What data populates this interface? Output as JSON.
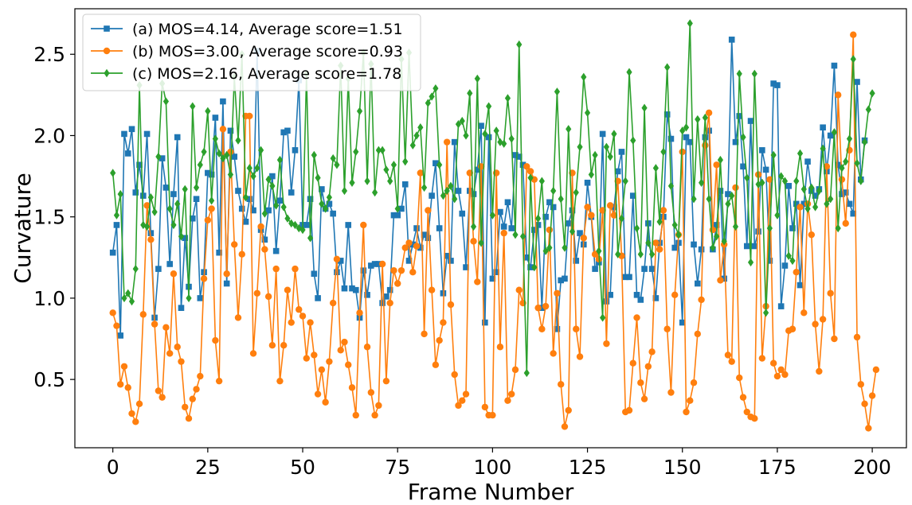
{
  "chart_data": {
    "type": "line",
    "xlabel": "Frame Number",
    "ylabel": "Curvature",
    "xlim": [
      -10,
      209
    ],
    "ylim": [
      0.08,
      2.78
    ],
    "xticks": [
      0,
      25,
      50,
      75,
      100,
      125,
      150,
      175,
      200
    ],
    "yticks": [
      0.5,
      1.0,
      1.5,
      2.0,
      2.5
    ],
    "ytick_labels": [
      "0.5",
      "1.0",
      "1.5",
      "2.0",
      "2.5"
    ],
    "grid": false,
    "legend_position": "upper-left",
    "x_start": 0,
    "x_step": 1,
    "series": [
      {
        "name": "(a) MOS=4.14, Average score=1.51",
        "color": "#1f77b4",
        "marker": "square",
        "values": [
          1.28,
          1.45,
          0.77,
          2.01,
          1.89,
          2.04,
          1.65,
          1.82,
          1.63,
          2.01,
          1.4,
          0.88,
          1.18,
          1.86,
          1.68,
          1.21,
          1.64,
          1.99,
          0.94,
          1.37,
          1.07,
          1.49,
          1.61,
          1.0,
          1.16,
          1.77,
          1.76,
          2.11,
          1.28,
          2.21,
          1.09,
          2.03,
          1.87,
          1.66,
          1.55,
          1.47,
          1.61,
          1.54,
          2.52,
          1.42,
          1.36,
          1.54,
          1.75,
          1.29,
          1.6,
          2.02,
          2.03,
          1.65,
          1.91,
          2.34,
          1.45,
          1.45,
          1.61,
          1.15,
          1.0,
          1.67,
          1.55,
          1.58,
          1.52,
          1.16,
          1.23,
          1.06,
          1.45,
          1.06,
          1.05,
          0.88,
          1.17,
          1.02,
          1.2,
          1.21,
          1.21,
          0.97,
          1.01,
          1.05,
          1.51,
          1.51,
          1.55,
          1.7,
          1.23,
          1.33,
          1.43,
          1.31,
          1.39,
          1.37,
          1.63,
          1.83,
          1.43,
          1.03,
          1.26,
          1.23,
          1.96,
          1.66,
          1.52,
          1.19,
          1.66,
          1.64,
          1.79,
          2.06,
          0.85,
          1.99,
          1.12,
          1.16,
          1.53,
          1.44,
          1.59,
          1.43,
          1.88,
          1.87,
          1.82,
          1.25,
          1.19,
          1.42,
          1.45,
          0.94,
          1.5,
          1.59,
          1.56,
          0.81,
          1.11,
          1.12,
          1.46,
          1.54,
          1.23,
          1.4,
          1.33,
          1.71,
          1.5,
          1.18,
          1.22,
          2.01,
          0.98,
          1.02,
          1.56,
          1.78,
          1.9,
          1.13,
          1.13,
          1.63,
          1.02,
          0.99,
          1.18,
          1.46,
          1.18,
          1.0,
          1.34,
          1.5,
          2.13,
          1.98,
          1.31,
          1.34,
          0.85,
          1.99,
          1.96,
          1.33,
          1.09,
          1.3,
          1.99,
          2.03,
          1.3,
          1.45,
          1.66,
          1.12,
          1.64,
          2.59,
          1.96,
          2.12,
          1.81,
          1.32,
          2.09,
          1.32,
          1.41,
          1.91,
          1.79,
          1.23,
          2.32,
          2.31,
          0.95,
          1.2,
          1.69,
          1.43,
          1.58,
          1.08,
          1.58,
          1.84,
          1.66,
          1.63,
          1.67,
          2.05,
          1.78,
          2.0,
          2.43,
          1.82,
          1.64,
          1.65,
          1.58,
          1.52,
          2.33,
          1.73,
          1.97
        ]
      },
      {
        "name": "(b) MOS=3.00, Average score=0.93",
        "color": "#ff7f0e",
        "marker": "circle",
        "values": [
          0.91,
          0.83,
          0.47,
          0.58,
          0.45,
          0.29,
          0.24,
          0.35,
          0.9,
          1.57,
          1.36,
          0.84,
          0.43,
          0.39,
          0.82,
          0.66,
          1.15,
          0.7,
          0.61,
          0.33,
          0.26,
          0.38,
          0.44,
          0.52,
          1.12,
          1.48,
          1.55,
          0.74,
          0.49,
          2.04,
          1.15,
          1.9,
          1.33,
          0.88,
          1.27,
          2.12,
          2.12,
          0.66,
          1.03,
          1.44,
          1.3,
          1.01,
          0.71,
          1.18,
          0.49,
          0.71,
          1.05,
          0.85,
          1.18,
          0.93,
          0.89,
          0.63,
          0.85,
          0.65,
          0.41,
          0.56,
          0.36,
          0.61,
          0.97,
          1.24,
          0.68,
          0.73,
          0.59,
          0.45,
          0.28,
          0.91,
          1.45,
          0.7,
          0.42,
          0.28,
          0.34,
          1.21,
          0.49,
          0.97,
          1.17,
          1.09,
          1.17,
          1.31,
          1.34,
          1.16,
          1.32,
          1.77,
          0.78,
          1.54,
          1.05,
          0.59,
          0.74,
          0.85,
          1.96,
          0.96,
          0.53,
          0.34,
          0.37,
          0.41,
          1.77,
          1.35,
          1.1,
          1.81,
          0.33,
          0.28,
          0.28,
          1.77,
          0.7,
          1.4,
          0.37,
          0.41,
          0.56,
          1.05,
          0.97,
          1.81,
          1.78,
          1.73,
          0.94,
          0.81,
          0.95,
          1.42,
          0.66,
          1.03,
          0.47,
          0.21,
          0.31,
          1.77,
          0.81,
          0.64,
          1.37,
          1.56,
          1.51,
          1.27,
          1.24,
          1.54,
          0.72,
          1.57,
          1.51,
          1.72,
          1.26,
          0.3,
          0.31,
          0.6,
          0.88,
          0.48,
          0.38,
          0.58,
          0.67,
          1.34,
          1.3,
          1.54,
          0.81,
          0.42,
          1.02,
          1.39,
          1.9,
          0.3,
          0.37,
          0.48,
          0.78,
          0.99,
          1.94,
          2.14,
          1.42,
          1.82,
          1.11,
          1.33,
          0.65,
          0.61,
          1.68,
          0.51,
          0.39,
          0.3,
          0.27,
          0.26,
          1.76,
          0.63,
          0.95,
          1.73,
          0.6,
          0.52,
          0.56,
          0.53,
          0.8,
          0.81,
          1.16,
          1.56,
          0.91,
          1.58,
          1.39,
          0.84,
          0.55,
          0.87,
          1.81,
          1.03,
          0.75,
          2.25,
          1.73,
          1.46,
          1.91,
          2.62,
          0.76,
          0.47,
          0.35,
          0.2,
          0.4,
          0.56
        ]
      },
      {
        "name": "(c) MOS=2.16, Average score=1.78",
        "color": "#2ca02c",
        "marker": "diamond",
        "values": [
          1.77,
          1.51,
          1.64,
          1.0,
          1.03,
          0.98,
          1.18,
          2.31,
          1.45,
          1.44,
          1.62,
          1.53,
          1.87,
          2.32,
          2.21,
          1.55,
          1.45,
          1.58,
          1.38,
          1.67,
          1.0,
          2.18,
          1.68,
          1.82,
          1.9,
          2.15,
          1.6,
          1.98,
          1.89,
          1.86,
          1.88,
          1.76,
          2.36,
          1.97,
          2.5,
          1.62,
          1.8,
          1.75,
          1.8,
          1.91,
          1.52,
          1.73,
          1.69,
          1.57,
          1.85,
          1.56,
          1.49,
          1.46,
          1.45,
          1.43,
          1.42,
          2.38,
          1.37,
          1.88,
          1.74,
          1.58,
          1.55,
          1.62,
          1.86,
          1.82,
          2.43,
          1.66,
          2.35,
          1.71,
          1.9,
          2.15,
          2.51,
          1.72,
          2.44,
          1.65,
          1.91,
          1.91,
          1.79,
          1.72,
          1.82,
          1.55,
          2.47,
          1.84,
          2.51,
          1.94,
          2.0,
          2.05,
          1.68,
          2.2,
          2.24,
          2.29,
          1.82,
          1.63,
          1.66,
          1.69,
          1.61,
          2.07,
          2.09,
          2.0,
          2.26,
          1.44,
          2.35,
          1.34,
          2.01,
          2.18,
          1.51,
          2.03,
          1.96,
          1.95,
          2.23,
          1.98,
          1.39,
          2.56,
          1.38,
          0.54,
          1.74,
          1.19,
          1.49,
          1.72,
          1.29,
          1.31,
          1.66,
          2.27,
          1.61,
          1.31,
          2.04,
          1.41,
          1.65,
          1.93,
          2.36,
          2.14,
          1.76,
          1.88,
          1.29,
          0.88,
          1.93,
          1.87,
          2.01,
          1.27,
          1.49,
          1.72,
          2.39,
          1.97,
          1.43,
          1.27,
          2.17,
          1.34,
          1.27,
          1.8,
          1.47,
          1.9,
          2.42,
          1.69,
          1.45,
          1.39,
          2.03,
          2.05,
          2.69,
          1.61,
          2.1,
          1.71,
          2.11,
          1.61,
          1.31,
          1.38,
          1.85,
          1.35,
          1.58,
          1.63,
          1.44,
          2.38,
          1.99,
          1.74,
          1.22,
          2.38,
          1.7,
          1.71,
          0.91,
          1.43,
          1.88,
          1.51,
          1.75,
          1.72,
          1.26,
          1.23,
          1.72,
          1.89,
          1.67,
          1.55,
          1.68,
          1.56,
          1.66,
          1.92,
          1.58,
          1.61,
          2.02,
          1.43,
          1.8,
          1.84,
          1.98,
          2.47,
          1.83,
          1.72,
          1.96,
          2.16,
          2.26
        ]
      }
    ]
  }
}
